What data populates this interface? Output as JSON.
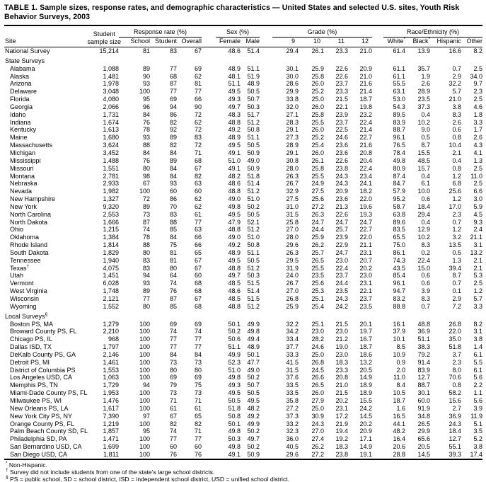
{
  "title": "TABLE 1. Sample sizes, response rates, and demographic characteristics — United States and selected U.S. sites, Youth Risk Behavior Surveys, 2003",
  "columns": {
    "site": "Site",
    "sample_l1": "Student",
    "sample_l2": "sample size",
    "groups": {
      "response": "Response rate (%)",
      "sex": "Sex (%)",
      "grade": "Grade (%)",
      "race": "Race/Ethnicity (%)"
    },
    "sub": {
      "school": "School",
      "student": "Student",
      "overall": "Overall",
      "female": "Female",
      "male": "Male",
      "g9": "9",
      "g10": "10",
      "g11": "11",
      "g12": "12",
      "white": "White",
      "white_sup": "*",
      "black": "Black",
      "black_sup": "*",
      "hispanic": "Hispanic",
      "other": "Other"
    }
  },
  "rows": [
    {
      "type": "data",
      "indent": false,
      "site": "National Survey",
      "values": [
        "15,214",
        "81",
        "83",
        "67",
        "48.6",
        "51.4",
        "29.4",
        "26.1",
        "23.3",
        "21.0",
        "61.4",
        "13.9",
        "16.6",
        "8.2"
      ]
    },
    {
      "type": "section",
      "label": "State Surveys"
    },
    {
      "type": "data",
      "indent": true,
      "site": "Alabama",
      "values": [
        "1,088",
        "89",
        "77",
        "69",
        "48.9",
        "51.1",
        "30.1",
        "25.9",
        "22.6",
        "20.9",
        "61.1",
        "35.7",
        "0.7",
        "2.5"
      ]
    },
    {
      "type": "data",
      "indent": true,
      "site": "Alaska",
      "values": [
        "1,481",
        "90",
        "68",
        "62",
        "48.1",
        "51.9",
        "30.0",
        "25.8",
        "22.6",
        "21.0",
        "61.1",
        "1.9",
        "2.9",
        "34.0"
      ]
    },
    {
      "type": "data",
      "indent": true,
      "site": "Arizona",
      "values": [
        "1,978",
        "93",
        "87",
        "81",
        "51.1",
        "48.9",
        "28.6",
        "26.0",
        "23.7",
        "21.6",
        "55.5",
        "2.6",
        "32.2",
        "9.7"
      ]
    },
    {
      "type": "data",
      "indent": true,
      "site": "Delaware",
      "values": [
        "3,048",
        "100",
        "77",
        "77",
        "49.5",
        "50.5",
        "29.9",
        "25.2",
        "23.3",
        "21.4",
        "63.1",
        "28.9",
        "5.7",
        "2.3"
      ]
    },
    {
      "type": "data",
      "indent": true,
      "site": "Florida",
      "values": [
        "4,080",
        "95",
        "69",
        "66",
        "49.3",
        "50.7",
        "33.8",
        "25.0",
        "21.5",
        "18.7",
        "53.0",
        "23.5",
        "21.0",
        "2.5"
      ]
    },
    {
      "type": "data",
      "indent": true,
      "site": "Georgia",
      "values": [
        "2,066",
        "96",
        "94",
        "90",
        "49.7",
        "50.3",
        "32.0",
        "26.0",
        "22.1",
        "19.8",
        "54.3",
        "37.3",
        "3.8",
        "4.6"
      ]
    },
    {
      "type": "data",
      "indent": true,
      "site": "Idaho",
      "values": [
        "1,731",
        "84",
        "86",
        "72",
        "48.3",
        "51.7",
        "27.1",
        "25.8",
        "23.9",
        "23.2",
        "89.5",
        "0.4",
        "8.3",
        "1.8"
      ]
    },
    {
      "type": "data",
      "indent": true,
      "site": "Indiana",
      "values": [
        "1,674",
        "76",
        "82",
        "62",
        "48.8",
        "51.2",
        "28.3",
        "25.5",
        "23.7",
        "22.4",
        "83.9",
        "10.2",
        "2.6",
        "3.3"
      ]
    },
    {
      "type": "data",
      "indent": true,
      "site": "Kentucky",
      "values": [
        "1,613",
        "78",
        "92",
        "72",
        "49.2",
        "50.8",
        "29.1",
        "26.0",
        "22.5",
        "21.4",
        "88.7",
        "9.0",
        "0.6",
        "1.7"
      ]
    },
    {
      "type": "data",
      "indent": true,
      "site": "Maine",
      "values": [
        "1,680",
        "93",
        "89",
        "83",
        "48.9",
        "51.1",
        "27.3",
        "25.2",
        "24.6",
        "22.7",
        "96.1",
        "0.5",
        "0.8",
        "2.6"
      ]
    },
    {
      "type": "data",
      "indent": true,
      "site": "Massachusetts",
      "values": [
        "3,624",
        "88",
        "82",
        "72",
        "49.5",
        "50.5",
        "28.9",
        "25.4",
        "23.6",
        "21.6",
        "76.5",
        "8.7",
        "10.4",
        "4.3"
      ]
    },
    {
      "type": "data",
      "indent": true,
      "site": "Michigan",
      "values": [
        "3,452",
        "84",
        "84",
        "71",
        "49.1",
        "50.9",
        "29.1",
        "26.0",
        "23.6",
        "20.8",
        "78.4",
        "15.5",
        "2.1",
        "4.1"
      ]
    },
    {
      "type": "data",
      "indent": true,
      "site": "Mississippi",
      "values": [
        "1,488",
        "76",
        "89",
        "68",
        "51.0",
        "49.0",
        "30.8",
        "26.1",
        "22.6",
        "20.4",
        "49.8",
        "48.5",
        "0.4",
        "1.3"
      ]
    },
    {
      "type": "data",
      "indent": true,
      "site": "Missouri",
      "values": [
        "1,551",
        "80",
        "84",
        "67",
        "49.1",
        "50.9",
        "28.0",
        "25.8",
        "23.8",
        "22.4",
        "80.9",
        "15.7",
        "0.8",
        "2.5"
      ]
    },
    {
      "type": "data",
      "indent": true,
      "site": "Montana",
      "values": [
        "2,781",
        "98",
        "84",
        "82",
        "48.2",
        "51.8",
        "26.3",
        "25.5",
        "24.3",
        "23.4",
        "87.4",
        "0.4",
        "1.2",
        "11.0"
      ]
    },
    {
      "type": "data",
      "indent": true,
      "site": "Nebraska",
      "values": [
        "2,933",
        "67",
        "93",
        "63",
        "48.6",
        "51.4",
        "26.7",
        "24.9",
        "24.3",
        "24.1",
        "84.7",
        "6.1",
        "6.8",
        "2.5"
      ]
    },
    {
      "type": "data",
      "indent": true,
      "site": "Nevada",
      "values": [
        "1,982",
        "100",
        "60",
        "60",
        "48.8",
        "51.2",
        "32.9",
        "27.5",
        "20.9",
        "18.2",
        "57.9",
        "10.0",
        "25.6",
        "6.6"
      ]
    },
    {
      "type": "data",
      "indent": true,
      "site": "New Hampshire",
      "values": [
        "1,327",
        "72",
        "86",
        "62",
        "49.0",
        "51.0",
        "27.5",
        "25.6",
        "23.6",
        "22.0",
        "95.2",
        "0.6",
        "1.2",
        "3.0"
      ]
    },
    {
      "type": "data",
      "indent": true,
      "site": "New York",
      "values": [
        "9,320",
        "89",
        "70",
        "62",
        "49.8",
        "50.2",
        "31.0",
        "27.2",
        "21.3",
        "19.6",
        "58.7",
        "18.4",
        "17.0",
        "5.9"
      ]
    },
    {
      "type": "data",
      "indent": true,
      "site": "North Carolina",
      "values": [
        "2,553",
        "73",
        "83",
        "61",
        "49.5",
        "50.5",
        "31.5",
        "26.3",
        "22.6",
        "19.3",
        "63.8",
        "29.4",
        "2.3",
        "4.5"
      ]
    },
    {
      "type": "data",
      "indent": true,
      "site": "North Dakota",
      "values": [
        "1,666",
        "87",
        "88",
        "77",
        "47.9",
        "52.1",
        "25.8",
        "24.7",
        "24.7",
        "24.7",
        "89.6",
        "0.4",
        "0.7",
        "9.3"
      ]
    },
    {
      "type": "data",
      "indent": true,
      "site": "Ohio",
      "values": [
        "1,215",
        "74",
        "85",
        "63",
        "48.8",
        "51.2",
        "27.0",
        "24.4",
        "25.7",
        "22.7",
        "83.5",
        "12.9",
        "1.2",
        "2.4"
      ]
    },
    {
      "type": "data",
      "indent": true,
      "site": "Oklahoma",
      "values": [
        "1,384",
        "78",
        "84",
        "66",
        "49.0",
        "51.0",
        "28.0",
        "25.9",
        "23.9",
        "22.0",
        "65.5",
        "10.2",
        "3.2",
        "21.1"
      ]
    },
    {
      "type": "data",
      "indent": true,
      "site": "Rhode Island",
      "values": [
        "1,814",
        "88",
        "75",
        "66",
        "49.2",
        "50.8",
        "29.6",
        "26.2",
        "22.9",
        "21.1",
        "75.0",
        "8.3",
        "13.5",
        "3.1"
      ]
    },
    {
      "type": "data",
      "indent": true,
      "site": "South Dakota",
      "values": [
        "1,829",
        "80",
        "81",
        "65",
        "48.9",
        "51.1",
        "26.3",
        "25.7",
        "24.7",
        "23.1",
        "86.1",
        "0.2",
        "0.5",
        "13.2"
      ]
    },
    {
      "type": "data",
      "indent": true,
      "site": "Tennessee",
      "values": [
        "1,940",
        "83",
        "81",
        "67",
        "49.5",
        "50.5",
        "29.5",
        "26.5",
        "23.0",
        "20.7",
        "74.3",
        "22.4",
        "1.3",
        "2.1"
      ]
    },
    {
      "type": "data",
      "indent": true,
      "site": "Texas",
      "sup": "†",
      "values": [
        "4,075",
        "83",
        "80",
        "67",
        "48.8",
        "51.2",
        "31.9",
        "25.5",
        "22.4",
        "20.2",
        "43.5",
        "15.0",
        "39.4",
        "2.1"
      ]
    },
    {
      "type": "data",
      "indent": true,
      "site": "Utah",
      "values": [
        "1,451",
        "94",
        "64",
        "60",
        "49.7",
        "50.3",
        "24.0",
        "23.5",
        "23.7",
        "23.0",
        "85.4",
        "0.6",
        "8.7",
        "5.3"
      ]
    },
    {
      "type": "data",
      "indent": true,
      "site": "Vermont",
      "values": [
        "6,028",
        "93",
        "74",
        "68",
        "48.5",
        "51.5",
        "26.7",
        "25.6",
        "24.4",
        "23.1",
        "96.1",
        "0.6",
        "0.7",
        "2.5"
      ]
    },
    {
      "type": "data",
      "indent": true,
      "site": "West Virginia",
      "values": [
        "1,748",
        "89",
        "76",
        "68",
        "48.6",
        "51.4",
        "27.0",
        "25.3",
        "23.5",
        "22.1",
        "94.7",
        "3.9",
        "0.1",
        "1.2"
      ]
    },
    {
      "type": "data",
      "indent": true,
      "site": "Wisconsin",
      "values": [
        "2,121",
        "77",
        "87",
        "67",
        "48.5",
        "51.5",
        "26.8",
        "25.1",
        "24.3",
        "23.7",
        "83.2",
        "8.3",
        "2.9",
        "5.7"
      ]
    },
    {
      "type": "data",
      "indent": true,
      "site": "Wyoming",
      "values": [
        "1,552",
        "80",
        "85",
        "68",
        "48.8",
        "51.2",
        "25.9",
        "25.4",
        "24.2",
        "23.5",
        "88.8",
        "0.7",
        "7.2",
        "3.3"
      ]
    },
    {
      "type": "section",
      "label": "Local Surveys",
      "sup": "§"
    },
    {
      "type": "data",
      "indent": true,
      "site": "Boston PS, MA",
      "values": [
        "1,279",
        "100",
        "69",
        "69",
        "50.1",
        "49.9",
        "32.2",
        "25.1",
        "21.5",
        "20.1",
        "16.1",
        "48.8",
        "26.8",
        "8.2"
      ]
    },
    {
      "type": "data",
      "indent": true,
      "site": "Broward County PS, FL",
      "values": [
        "2,210",
        "100",
        "74",
        "74",
        "50.2",
        "49.8",
        "34.2",
        "23.0",
        "23.0",
        "19.7",
        "37.9",
        "36.9",
        "22.0",
        "3.1"
      ]
    },
    {
      "type": "data",
      "indent": true,
      "site": "Chicago PS, IL",
      "values": [
        "968",
        "100",
        "77",
        "77",
        "50.6",
        "49.4",
        "33.4",
        "28.2",
        "21.2",
        "16.7",
        "10.1",
        "51.1",
        "35.0",
        "3.8"
      ]
    },
    {
      "type": "data",
      "indent": true,
      "site": "Dallas ISD, TX",
      "values": [
        "1,797",
        "100",
        "77",
        "77",
        "51.1",
        "48.9",
        "37.7",
        "24.6",
        "19.0",
        "18.7",
        "8.5",
        "38.3",
        "51.8",
        "1.4"
      ]
    },
    {
      "type": "data",
      "indent": true,
      "site": "DeKalb County PS, GA",
      "values": [
        "2,146",
        "100",
        "84",
        "84",
        "49.9",
        "50.1",
        "33.3",
        "25.0",
        "23.0",
        "18.6",
        "10.9",
        "79.2",
        "3.7",
        "6.1"
      ]
    },
    {
      "type": "data",
      "indent": true,
      "site": "Detroit PS, MI",
      "values": [
        "1,461",
        "100",
        "73",
        "73",
        "52.3",
        "47.7",
        "41.5",
        "26.8",
        "18.3",
        "13.2",
        "0.9",
        "91.4",
        "2.3",
        "5.5"
      ]
    },
    {
      "type": "data",
      "indent": true,
      "site": "District of Columbia PS",
      "values": [
        "1,553",
        "100",
        "80",
        "80",
        "51.0",
        "49.0",
        "31.5",
        "24.5",
        "23.3",
        "20.5",
        "2.0",
        "83.9",
        "8.0",
        "6.1"
      ]
    },
    {
      "type": "data",
      "indent": true,
      "site": "Los Angeles USD, CA",
      "values": [
        "1,063",
        "100",
        "69",
        "69",
        "49.8",
        "50.2",
        "37.6",
        "26.6",
        "20.8",
        "14.9",
        "11.0",
        "12.7",
        "70.6",
        "5.6"
      ]
    },
    {
      "type": "data",
      "indent": true,
      "site": "Memphis PS, TN",
      "values": [
        "1,729",
        "94",
        "79",
        "75",
        "49.3",
        "50.7",
        "33.5",
        "26.5",
        "21.0",
        "18.9",
        "8.4",
        "88.7",
        "0.8",
        "2.2"
      ]
    },
    {
      "type": "data",
      "indent": true,
      "site": "Miami-Dade County PS, FL",
      "values": [
        "1,953",
        "100",
        "73",
        "73",
        "49.5",
        "50.5",
        "33.5",
        "26.0",
        "21.5",
        "18.9",
        "10.5",
        "30.1",
        "58.2",
        "1.1"
      ]
    },
    {
      "type": "data",
      "indent": true,
      "site": "Milwaukee PS, WI",
      "values": [
        "1,476",
        "100",
        "71",
        "71",
        "50.5",
        "49.5",
        "35.8",
        "27.9",
        "20.2",
        "15.5",
        "18.7",
        "60.0",
        "15.6",
        "5.6"
      ]
    },
    {
      "type": "data",
      "indent": true,
      "site": "New Orleans PS, LA",
      "values": [
        "1,617",
        "100",
        "61",
        "61",
        "51.8",
        "48.2",
        "27.2",
        "25.0",
        "23.1",
        "24.2",
        "1.6",
        "91.9",
        "2.7",
        "3.9"
      ]
    },
    {
      "type": "data",
      "indent": true,
      "site": "New York City PS, NY",
      "values": [
        "7,390",
        "97",
        "67",
        "65",
        "50.8",
        "49.2",
        "37.3",
        "30.9",
        "17.2",
        "14.5",
        "16.5",
        "34.8",
        "36.9",
        "11.9"
      ]
    },
    {
      "type": "data",
      "indent": true,
      "site": "Orange County PS, FL",
      "values": [
        "1,219",
        "100",
        "82",
        "82",
        "50.1",
        "49.9",
        "33.2",
        "24.3",
        "21.9",
        "20.2",
        "44.1",
        "26.5",
        "24.3",
        "5.1"
      ]
    },
    {
      "type": "data",
      "indent": true,
      "site": "Palm Beach County SD, FL",
      "values": [
        "1,857",
        "95",
        "74",
        "71",
        "49.8",
        "50.2",
        "32.3",
        "27.0",
        "19.4",
        "20.9",
        "48.2",
        "29.9",
        "18.4",
        "3.5"
      ]
    },
    {
      "type": "data",
      "indent": true,
      "site": "Philadelphia SD, PA",
      "values": [
        "1,471",
        "100",
        "77",
        "77",
        "50.3",
        "49.7",
        "36.0",
        "27.4",
        "19.2",
        "17.1",
        "16.4",
        "65.6",
        "12.7",
        "5.2"
      ]
    },
    {
      "type": "data",
      "indent": true,
      "site": "San Bernardino USD, CA",
      "values": [
        "1,699",
        "100",
        "60",
        "60",
        "49.8",
        "50.2",
        "40.5",
        "26.2",
        "18.3",
        "14.9",
        "20.6",
        "20.5",
        "55.1",
        "3.8"
      ]
    },
    {
      "type": "data",
      "indent": true,
      "site": "San Diego USD, CA",
      "values": [
        "1,811",
        "100",
        "76",
        "76",
        "49.1",
        "50.9",
        "29.6",
        "27.2",
        "23.8",
        "19.1",
        "28.8",
        "14.5",
        "39.3",
        "17.4"
      ]
    }
  ],
  "footnotes": [
    {
      "marker": "*",
      "text": "Non-Hispanic."
    },
    {
      "marker": "†",
      "text": "Survey did not include students from one of the state’s large school districts."
    },
    {
      "marker": "§",
      "text": "PS = public school, SD = school district, ISD = independent school district, USD = unified school district."
    }
  ]
}
